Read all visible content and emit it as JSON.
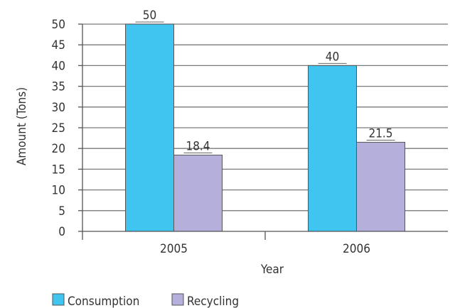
{
  "chart_data": {
    "type": "bar",
    "categories": [
      "2005",
      "2006"
    ],
    "series": [
      {
        "name": "Consumption",
        "values": [
          50,
          40
        ],
        "color": "#3fc5ef"
      },
      {
        "name": "Recycling",
        "values": [
          18.4,
          21.5
        ],
        "color": "#b4b0db"
      }
    ],
    "data_labels": [
      [
        "50",
        "40"
      ],
      [
        "18.4",
        "21.5"
      ]
    ],
    "xlabel": "Year",
    "ylabel": "Amount (Tons)",
    "ylim": [
      0,
      50
    ],
    "yticks": [
      0,
      5,
      10,
      15,
      20,
      25,
      30,
      35,
      40,
      45,
      50
    ],
    "grid": true,
    "legend_position": "bottom-left"
  }
}
